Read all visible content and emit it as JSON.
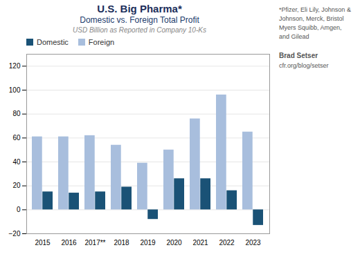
{
  "chart_data": {
    "type": "bar",
    "title": "U.S. Big Pharma*",
    "subtitle": [
      "Domestic vs. Foreign Total Profit",
      "USD Billion as Reported in Company 10-Ks"
    ],
    "annotations": [
      "*Pfizer, Eli Lily, Johnson &\nJohnson, Merck, Bristol\nMyers Squibb, Amgen,\nand Gilead",
      "Brad Setser",
      "cfr.org/blog/setser"
    ],
    "categories": [
      "2015",
      "2016",
      "2017**",
      "2018",
      "2019",
      "2020",
      "2021",
      "2022",
      "2023"
    ],
    "series": [
      {
        "name": "Foreign",
        "color": "#a8bedd",
        "values": [
          61,
          61,
          62,
          54,
          39,
          50,
          76,
          96,
          65
        ]
      },
      {
        "name": "Domestic",
        "color": "#1a5276",
        "values": [
          15,
          14,
          15,
          19,
          -8,
          26,
          26,
          16,
          -13
        ]
      }
    ],
    "ylim": [
      -20,
      130
    ],
    "yticks": [
      -20,
      0,
      20,
      40,
      60,
      80,
      100,
      120
    ],
    "grid": true,
    "legend": "upper left"
  }
}
